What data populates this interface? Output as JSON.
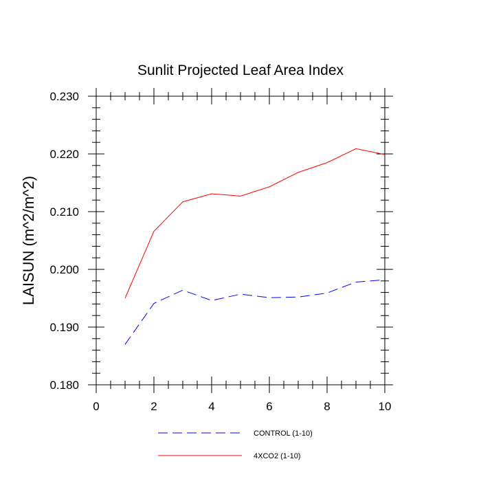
{
  "chart_data": {
    "type": "line",
    "title": "Sunlit Projected Leaf Area Index",
    "xlabel": "",
    "ylabel": "LAISUN  (m^2/m^2)",
    "xlim": [
      0,
      10
    ],
    "ylim": [
      0.18,
      0.23
    ],
    "x_ticks": [
      0,
      2,
      4,
      6,
      8,
      10
    ],
    "x_tick_labels": [
      "0",
      "2",
      "4",
      "6",
      "8",
      "10"
    ],
    "y_ticks": [
      0.18,
      0.19,
      0.2,
      0.21,
      0.22,
      0.23
    ],
    "y_tick_labels": [
      "0.180",
      "0.190",
      "0.200",
      "0.210",
      "0.220",
      "0.230"
    ],
    "grid": false,
    "legend_position": "bottom",
    "x": [
      1,
      2,
      3,
      4,
      5,
      6,
      7,
      8,
      9,
      10
    ],
    "series": [
      {
        "name": "CONTROL (1-10)",
        "color": "#0000ff",
        "style": "dashed",
        "values": [
          0.187,
          0.1941,
          0.1964,
          0.1946,
          0.1957,
          0.1951,
          0.1952,
          0.1959,
          0.1978,
          0.1982
        ]
      },
      {
        "name": "4XCO2 (1-10)",
        "color": "#ff0000",
        "style": "solid",
        "values": [
          0.195,
          0.2066,
          0.2117,
          0.2131,
          0.2127,
          0.2143,
          0.2168,
          0.2185,
          0.2209,
          0.2199
        ]
      }
    ]
  }
}
